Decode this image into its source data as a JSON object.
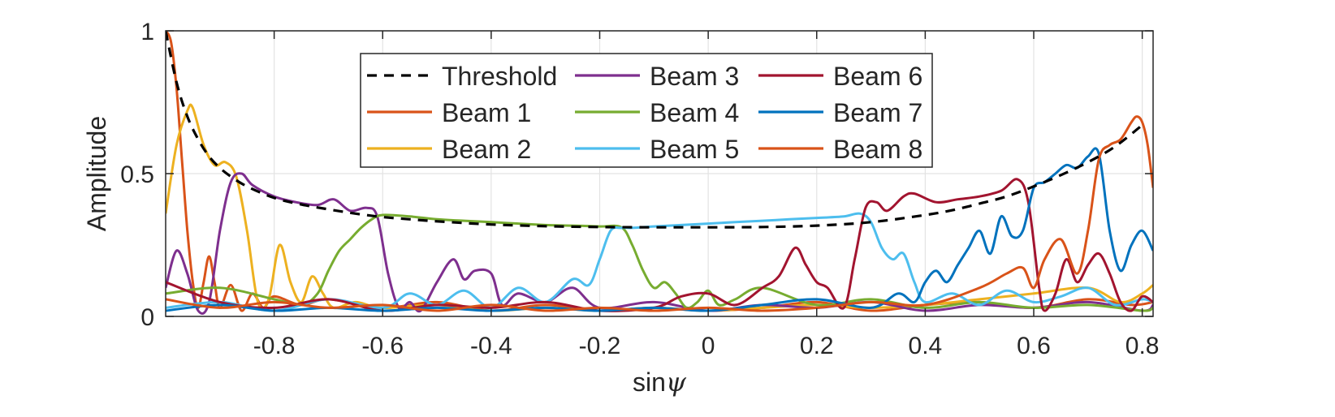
{
  "chart_data": {
    "type": "line",
    "title": "",
    "xlabel": "sinψ",
    "xlabel_parts": {
      "plain": "sin",
      "italic": "ψ"
    },
    "ylabel": "Amplitude",
    "xlim": [
      -1.0,
      0.82
    ],
    "ylim": [
      0,
      1
    ],
    "xticks": [
      -0.8,
      -0.6,
      -0.4,
      -0.2,
      0,
      0.2,
      0.4,
      0.6,
      0.8
    ],
    "xtick_labels": [
      "-0.8",
      "-0.6",
      "-0.4",
      "-0.2",
      "0",
      "0.2",
      "0.4",
      "0.6",
      "0.8"
    ],
    "yticks": [
      0,
      0.5,
      1
    ],
    "ytick_labels": [
      "0",
      "0.5",
      "1"
    ],
    "grid": true,
    "legend_position": "top-center",
    "series": [
      {
        "name": "Threshold",
        "color": "#000000",
        "dash": true,
        "x": [
          -1.0,
          -0.98,
          -0.96,
          -0.94,
          -0.92,
          -0.9,
          -0.88,
          -0.85,
          -0.8,
          -0.75,
          -0.7,
          -0.65,
          -0.6,
          -0.55,
          -0.5,
          -0.4,
          -0.3,
          -0.2,
          -0.1,
          0,
          0.1,
          0.2,
          0.3,
          0.4,
          0.45,
          0.5,
          0.55,
          0.6,
          0.65,
          0.7,
          0.75,
          0.8
        ],
        "y": [
          1.0,
          0.82,
          0.7,
          0.62,
          0.56,
          0.52,
          0.49,
          0.455,
          0.415,
          0.392,
          0.375,
          0.36,
          0.348,
          0.34,
          0.333,
          0.322,
          0.316,
          0.313,
          0.312,
          0.312,
          0.313,
          0.318,
          0.33,
          0.355,
          0.372,
          0.395,
          0.42,
          0.455,
          0.495,
          0.54,
          0.595,
          0.67
        ]
      },
      {
        "name": "Beam 1",
        "color": "#D95319",
        "dash": false,
        "x": [
          -1.0,
          -0.99,
          -0.98,
          -0.97,
          -0.96,
          -0.95,
          -0.94,
          -0.93,
          -0.92,
          -0.91,
          -0.9,
          -0.88,
          -0.86,
          -0.84,
          -0.82,
          -0.8,
          -0.75,
          -0.7,
          -0.6,
          -0.5,
          -0.4,
          -0.3,
          -0.2,
          -0.1,
          0,
          0.1,
          0.2,
          0.3,
          0.4,
          0.5,
          0.6,
          0.7,
          0.78,
          0.82
        ],
        "y": [
          1.0,
          0.96,
          0.8,
          0.55,
          0.3,
          0.12,
          0.03,
          0.12,
          0.21,
          0.12,
          0.03,
          0.11,
          0.02,
          0.08,
          0.03,
          0.07,
          0.04,
          0.06,
          0.03,
          0.05,
          0.02,
          0.04,
          0.02,
          0.03,
          0.02,
          0.03,
          0.05,
          0.02,
          0.04,
          0.05,
          0.03,
          0.06,
          0.04,
          0.05
        ]
      },
      {
        "name": "Beam 2",
        "color": "#EDB120",
        "dash": false,
        "x": [
          -1.0,
          -0.98,
          -0.96,
          -0.95,
          -0.93,
          -0.91,
          -0.89,
          -0.87,
          -0.85,
          -0.83,
          -0.81,
          -0.79,
          -0.77,
          -0.75,
          -0.73,
          -0.71,
          -0.69,
          -0.65,
          -0.6,
          -0.5,
          -0.4,
          -0.3,
          -0.2,
          -0.1,
          0,
          0.1,
          0.2,
          0.3,
          0.4,
          0.5,
          0.6,
          0.7,
          0.76,
          0.8,
          0.82
        ],
        "y": [
          0.36,
          0.6,
          0.72,
          0.73,
          0.6,
          0.53,
          0.54,
          0.49,
          0.3,
          0.05,
          0.06,
          0.25,
          0.12,
          0.05,
          0.14,
          0.08,
          0.03,
          0.05,
          0.03,
          0.04,
          0.02,
          0.03,
          0.02,
          0.03,
          0.02,
          0.03,
          0.04,
          0.03,
          0.04,
          0.06,
          0.08,
          0.1,
          0.05,
          0.08,
          0.11
        ]
      },
      {
        "name": "Beam 3",
        "color": "#7E2F8E",
        "dash": false,
        "x": [
          -1.0,
          -0.98,
          -0.96,
          -0.94,
          -0.92,
          -0.9,
          -0.88,
          -0.86,
          -0.84,
          -0.8,
          -0.76,
          -0.72,
          -0.69,
          -0.66,
          -0.63,
          -0.61,
          -0.59,
          -0.57,
          -0.55,
          -0.53,
          -0.5,
          -0.47,
          -0.45,
          -0.43,
          -0.4,
          -0.38,
          -0.35,
          -0.3,
          -0.25,
          -0.2,
          -0.1,
          0,
          0.1,
          0.2,
          0.3,
          0.4,
          0.5,
          0.6,
          0.7,
          0.8,
          0.82
        ],
        "y": [
          0.1,
          0.23,
          0.15,
          0.02,
          0.05,
          0.3,
          0.47,
          0.5,
          0.46,
          0.42,
          0.4,
          0.39,
          0.41,
          0.37,
          0.38,
          0.35,
          0.15,
          0.03,
          0.05,
          0.02,
          0.12,
          0.2,
          0.13,
          0.16,
          0.15,
          0.04,
          0.08,
          0.05,
          0.1,
          0.03,
          0.05,
          0.02,
          0.04,
          0.03,
          0.05,
          0.02,
          0.04,
          0.03,
          0.05,
          0.02,
          0.04
        ]
      },
      {
        "name": "Beam 4",
        "color": "#77AC30",
        "dash": false,
        "x": [
          -1.0,
          -0.9,
          -0.8,
          -0.75,
          -0.72,
          -0.7,
          -0.68,
          -0.66,
          -0.64,
          -0.62,
          -0.6,
          -0.55,
          -0.5,
          -0.45,
          -0.4,
          -0.35,
          -0.3,
          -0.25,
          -0.2,
          -0.16,
          -0.14,
          -0.12,
          -0.1,
          -0.08,
          -0.06,
          -0.04,
          -0.02,
          0,
          0.02,
          0.05,
          0.1,
          0.2,
          0.3,
          0.4,
          0.5,
          0.6,
          0.7,
          0.8,
          0.82
        ],
        "y": [
          0.08,
          0.1,
          0.06,
          0.04,
          0.08,
          0.16,
          0.23,
          0.27,
          0.31,
          0.34,
          0.355,
          0.35,
          0.34,
          0.335,
          0.33,
          0.325,
          0.32,
          0.318,
          0.315,
          0.312,
          0.25,
          0.16,
          0.1,
          0.12,
          0.08,
          0.03,
          0.05,
          0.09,
          0.04,
          0.06,
          0.1,
          0.04,
          0.06,
          0.03,
          0.05,
          0.03,
          0.04,
          0.02,
          0.03
        ]
      },
      {
        "name": "Beam 5",
        "color": "#4DBEEE",
        "dash": false,
        "x": [
          -1.0,
          -0.9,
          -0.8,
          -0.7,
          -0.6,
          -0.55,
          -0.5,
          -0.45,
          -0.4,
          -0.35,
          -0.3,
          -0.25,
          -0.22,
          -0.2,
          -0.18,
          -0.16,
          -0.14,
          -0.1,
          -0.05,
          0,
          0.05,
          0.1,
          0.15,
          0.2,
          0.25,
          0.28,
          0.3,
          0.32,
          0.34,
          0.36,
          0.38,
          0.4,
          0.45,
          0.5,
          0.55,
          0.6,
          0.65,
          0.7,
          0.75,
          0.8,
          0.82
        ],
        "y": [
          0.03,
          0.05,
          0.02,
          0.06,
          0.03,
          0.08,
          0.04,
          0.09,
          0.03,
          0.1,
          0.05,
          0.13,
          0.11,
          0.2,
          0.3,
          0.31,
          0.31,
          0.315,
          0.32,
          0.325,
          0.33,
          0.335,
          0.34,
          0.345,
          0.35,
          0.36,
          0.33,
          0.24,
          0.2,
          0.22,
          0.12,
          0.05,
          0.08,
          0.04,
          0.09,
          0.05,
          0.07,
          0.1,
          0.04,
          0.06,
          0.05
        ]
      },
      {
        "name": "Beam 6",
        "color": "#A2142F",
        "dash": false,
        "x": [
          -1.0,
          -0.9,
          -0.8,
          -0.7,
          -0.6,
          -0.5,
          -0.4,
          -0.3,
          -0.2,
          -0.1,
          -0.05,
          0,
          0.05,
          0.1,
          0.13,
          0.16,
          0.18,
          0.2,
          0.22,
          0.25,
          0.27,
          0.29,
          0.31,
          0.33,
          0.36,
          0.38,
          0.42,
          0.46,
          0.5,
          0.54,
          0.57,
          0.59,
          0.61,
          0.62,
          0.64,
          0.66,
          0.68,
          0.7,
          0.72,
          0.74,
          0.76,
          0.78,
          0.8,
          0.82
        ],
        "y": [
          0.12,
          0.05,
          0.03,
          0.06,
          0.02,
          0.04,
          0.03,
          0.05,
          0.02,
          0.03,
          0.07,
          0.08,
          0.04,
          0.1,
          0.14,
          0.24,
          0.18,
          0.12,
          0.1,
          0.03,
          0.2,
          0.38,
          0.4,
          0.37,
          0.42,
          0.43,
          0.4,
          0.41,
          0.42,
          0.44,
          0.48,
          0.4,
          0.1,
          0.02,
          0.08,
          0.2,
          0.12,
          0.18,
          0.22,
          0.15,
          0.05,
          0.02,
          0.07,
          0.05
        ]
      },
      {
        "name": "Beam 7",
        "color": "#0072BD",
        "dash": false,
        "x": [
          -1.0,
          -0.9,
          -0.8,
          -0.7,
          -0.6,
          -0.5,
          -0.4,
          -0.3,
          -0.2,
          -0.1,
          0,
          0.1,
          0.2,
          0.3,
          0.35,
          0.38,
          0.4,
          0.42,
          0.44,
          0.46,
          0.48,
          0.5,
          0.52,
          0.54,
          0.56,
          0.58,
          0.6,
          0.62,
          0.64,
          0.66,
          0.68,
          0.7,
          0.72,
          0.74,
          0.76,
          0.78,
          0.8,
          0.82
        ],
        "y": [
          0.02,
          0.04,
          0.02,
          0.03,
          0.02,
          0.03,
          0.02,
          0.03,
          0.02,
          0.03,
          0.02,
          0.04,
          0.06,
          0.03,
          0.08,
          0.05,
          0.12,
          0.16,
          0.12,
          0.18,
          0.24,
          0.3,
          0.22,
          0.35,
          0.28,
          0.3,
          0.45,
          0.47,
          0.5,
          0.53,
          0.52,
          0.56,
          0.57,
          0.3,
          0.16,
          0.25,
          0.3,
          0.23
        ]
      },
      {
        "name": "Beam 8",
        "color": "#D95319",
        "dash": false,
        "x": [
          -1.0,
          -0.9,
          -0.8,
          -0.7,
          -0.6,
          -0.5,
          -0.4,
          -0.3,
          -0.2,
          -0.1,
          0,
          0.1,
          0.2,
          0.3,
          0.4,
          0.5,
          0.55,
          0.58,
          0.6,
          0.62,
          0.65,
          0.68,
          0.7,
          0.72,
          0.74,
          0.76,
          0.78,
          0.79,
          0.8,
          0.81,
          0.82
        ],
        "y": [
          0.06,
          0.03,
          0.05,
          0.03,
          0.04,
          0.02,
          0.04,
          0.02,
          0.03,
          0.02,
          0.03,
          0.02,
          0.03,
          0.05,
          0.04,
          0.1,
          0.15,
          0.17,
          0.1,
          0.2,
          0.27,
          0.15,
          0.3,
          0.55,
          0.6,
          0.62,
          0.68,
          0.7,
          0.68,
          0.6,
          0.45
        ]
      }
    ]
  }
}
